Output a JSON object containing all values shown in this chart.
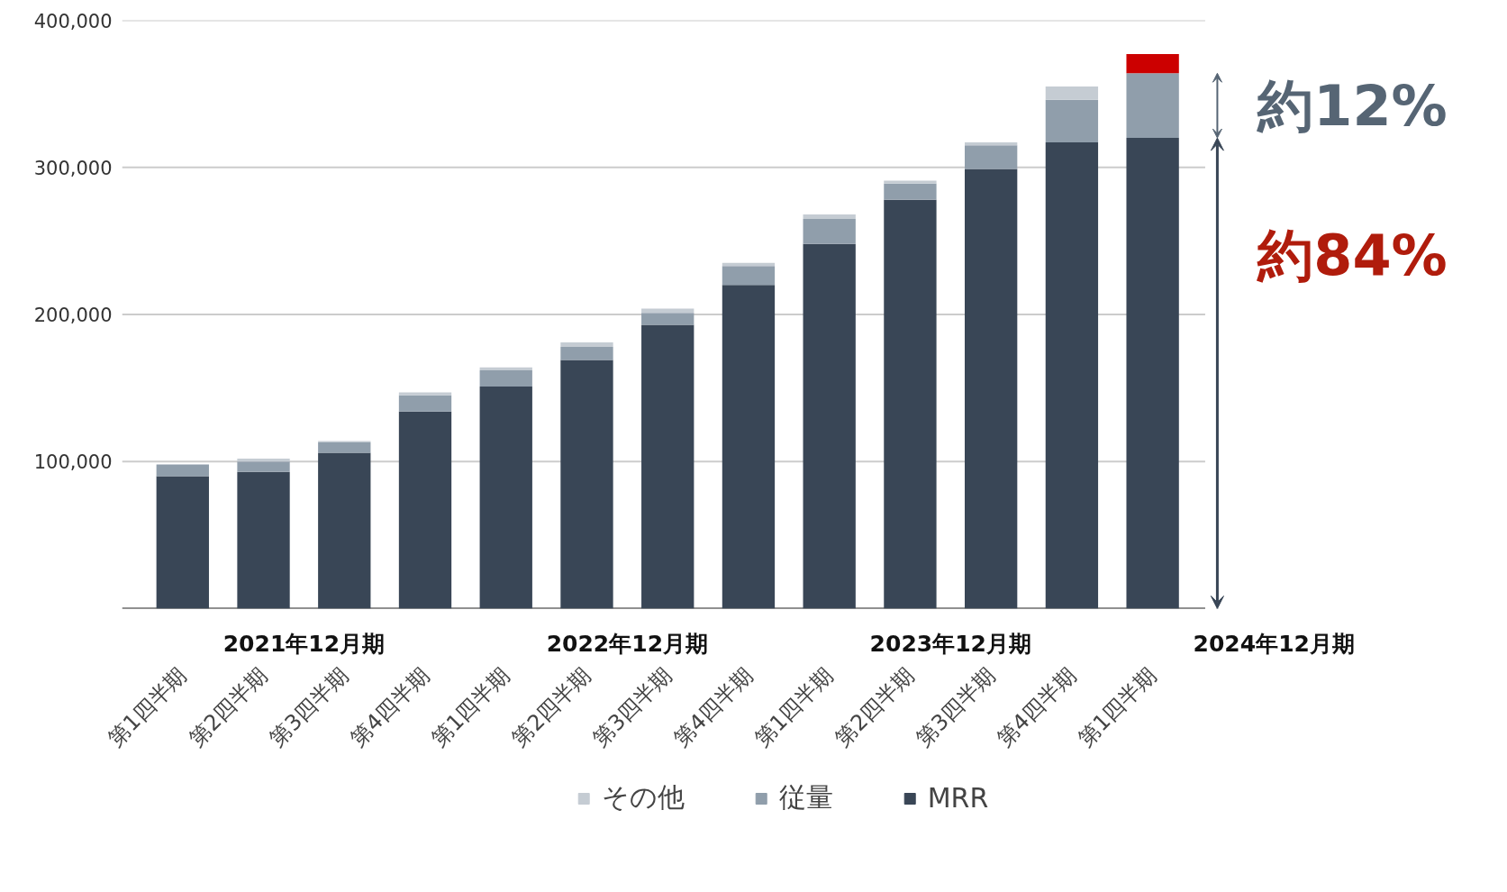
{
  "chart_data": {
    "type": "bar",
    "stacked": true,
    "categories": [
      "第1四半期",
      "第2四半期",
      "第3四半期",
      "第4四半期",
      "第1四半期",
      "第2四半期",
      "第3四半期",
      "第4四半期",
      "第1四半期",
      "第2四半期",
      "第3四半期",
      "第4四半期",
      "第1四半期"
    ],
    "series": [
      {
        "name": "MRR",
        "color": "#394656",
        "values": [
          90000,
          93000,
          106000,
          134000,
          151000,
          169000,
          193000,
          220000,
          248000,
          278000,
          299000,
          317000,
          320000
        ]
      },
      {
        "name": "従量",
        "color": "#909eab",
        "values": [
          8000,
          7000,
          7000,
          11000,
          11000,
          9000,
          8000,
          13000,
          17000,
          11000,
          16000,
          29000,
          44000
        ]
      },
      {
        "name": "その他",
        "color": "#c5ccd3",
        "colors": [
          "#c5ccd3",
          "#c5ccd3",
          "#c5ccd3",
          "#c5ccd3",
          "#c5ccd3",
          "#c5ccd3",
          "#c5ccd3",
          "#c5ccd3",
          "#c5ccd3",
          "#c5ccd3",
          "#c5ccd3",
          "#c5ccd3",
          "#cc0000"
        ],
        "values": [
          null,
          2000,
          1000,
          2000,
          2000,
          3000,
          3000,
          2000,
          3000,
          2000,
          2000,
          9000,
          13000
        ]
      }
    ],
    "ylim": [
      0,
      400000
    ],
    "yticks": [
      {
        "value": 100000,
        "label": "100,000"
      },
      {
        "value": 200000,
        "label": "200,000"
      },
      {
        "value": 300000,
        "label": "300,000"
      },
      {
        "value": 400000,
        "label": "400,000"
      }
    ],
    "grid": "y",
    "legend": "bottom",
    "annotations": [
      "2021年12月期",
      "2022年12月期",
      "2023年12月期",
      "2024年12月期",
      "約12%",
      "約84%"
    ]
  }
}
